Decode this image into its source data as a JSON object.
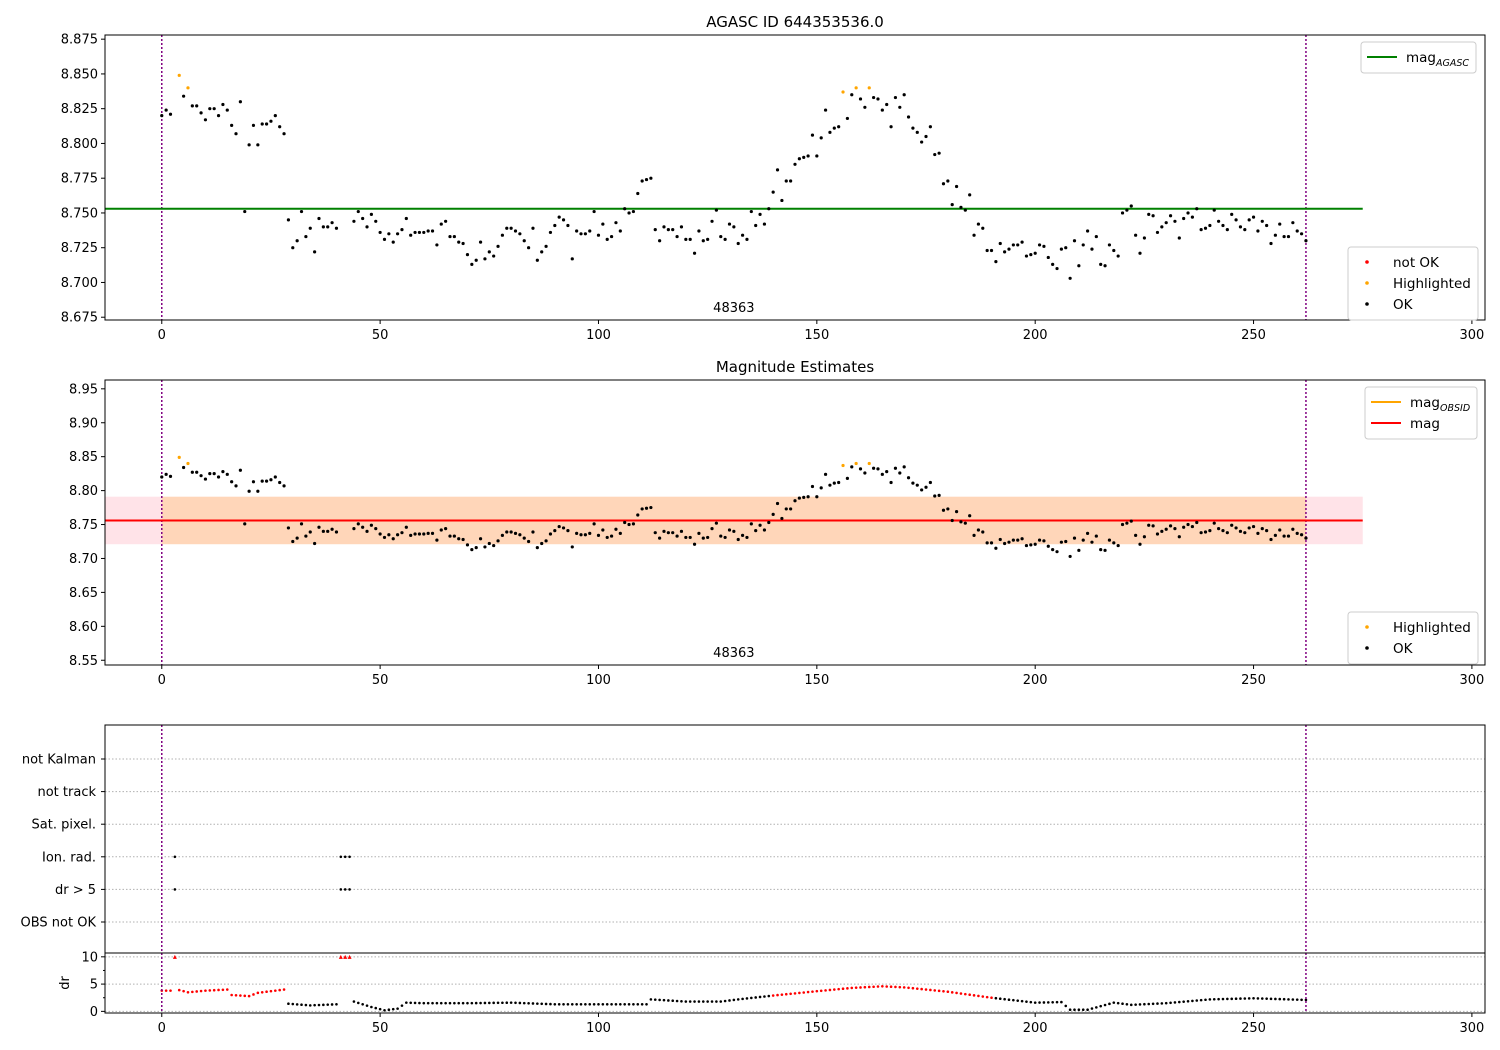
{
  "chart_data": [
    {
      "type": "scatter",
      "title": "AGASC ID 644353536.0",
      "xlim": [
        -13,
        303
      ],
      "ylim": [
        8.673,
        8.878
      ],
      "xticks": [
        0,
        50,
        100,
        150,
        200,
        250,
        300
      ],
      "yticks": [
        8.675,
        8.7,
        8.725,
        8.75,
        8.775,
        8.8,
        8.825,
        8.85,
        8.875
      ],
      "ytick_format": 3,
      "obsid_label": "48363",
      "obsid_label_x": 131,
      "vlines": [
        0,
        262
      ],
      "reference_line": {
        "name": "mag",
        "subscript": "AGASC",
        "y": 8.753,
        "x_end": 275,
        "color": "#008000"
      },
      "legend_top": [
        {
          "kind": "line",
          "label": "mag",
          "subscript": "AGASC",
          "color": "#008000"
        }
      ],
      "legend_bottom": [
        {
          "kind": "dot",
          "label": "not OK",
          "color": "#ff0000"
        },
        {
          "kind": "dot",
          "label": "Highlighted",
          "color": "#ffa500"
        },
        {
          "kind": "dot",
          "label": "OK",
          "color": "#000000"
        }
      ],
      "series": [
        {
          "name": "Highlighted",
          "color": "#ffa500",
          "x": [
            4,
            6,
            156,
            159,
            162
          ],
          "y": [
            8.849,
            8.84,
            8.837,
            8.84,
            8.84
          ]
        },
        {
          "name": "OK",
          "color": "#000000",
          "x": [
            0,
            1,
            2,
            5,
            7,
            8,
            9,
            10,
            11,
            12,
            13,
            14,
            15,
            16,
            17,
            18,
            19,
            20,
            21,
            22,
            23,
            24,
            25,
            26,
            27,
            28,
            29,
            30,
            31,
            32,
            33,
            34,
            35,
            36,
            37,
            38,
            39,
            40,
            44,
            45,
            46,
            47,
            48,
            49,
            50,
            51,
            52,
            53,
            54,
            55,
            56,
            57,
            58,
            59,
            60,
            61,
            62,
            63,
            64,
            65,
            66,
            67,
            68,
            69,
            70,
            71,
            72,
            73,
            74,
            75,
            76,
            77,
            78,
            79,
            80,
            81,
            82,
            83,
            84,
            85,
            86,
            87,
            88,
            89,
            90,
            91,
            92,
            93,
            94,
            95,
            96,
            97,
            98,
            99,
            100,
            101,
            102,
            103,
            104,
            105,
            106,
            107,
            108,
            109,
            110,
            111,
            112,
            113,
            114,
            115,
            116,
            117,
            118,
            119,
            120,
            121,
            122,
            123,
            124,
            125,
            126,
            127,
            128,
            129,
            130,
            131,
            132,
            133,
            134,
            135,
            136,
            137,
            138,
            139,
            140,
            141,
            142,
            143,
            144,
            145,
            146,
            147,
            148,
            149,
            150,
            151,
            152,
            153,
            154,
            155,
            157,
            158,
            160,
            161,
            163,
            164,
            165,
            166,
            167,
            168,
            169,
            170,
            171,
            172,
            173,
            174,
            175,
            176,
            177,
            178,
            179,
            180,
            181,
            182,
            183,
            184,
            185,
            186,
            187,
            188,
            189,
            190,
            191,
            192,
            193,
            194,
            195,
            196,
            197,
            198,
            199,
            200,
            201,
            202,
            203,
            204,
            205,
            206,
            207,
            208,
            209,
            210,
            211,
            212,
            213,
            214,
            215,
            216,
            217,
            218,
            219,
            220,
            221,
            222,
            223,
            224,
            225,
            226,
            227,
            228,
            229,
            230,
            231,
            232,
            233,
            234,
            235,
            236,
            237,
            238,
            239,
            240,
            241,
            242,
            243,
            244,
            245,
            246,
            247,
            248,
            249,
            250,
            251,
            252,
            253,
            254,
            255,
            256,
            257,
            258,
            259,
            260,
            261,
            262
          ],
          "y": [
            8.82,
            8.824,
            8.821,
            8.834,
            8.827,
            8.827,
            8.822,
            8.817,
            8.825,
            8.825,
            8.82,
            8.828,
            8.824,
            8.813,
            8.807,
            8.83,
            8.751,
            8.799,
            8.813,
            8.799,
            8.814,
            8.814,
            8.816,
            8.82,
            8.812,
            8.807,
            8.745,
            8.725,
            8.73,
            8.751,
            8.733,
            8.739,
            8.722,
            8.746,
            8.74,
            8.74,
            8.743,
            8.739,
            8.744,
            8.751,
            8.746,
            8.74,
            8.749,
            8.744,
            8.736,
            8.731,
            8.735,
            8.729,
            8.735,
            8.738,
            8.746,
            8.734,
            8.736,
            8.736,
            8.736,
            8.737,
            8.737,
            8.727,
            8.742,
            8.744,
            8.733,
            8.733,
            8.729,
            8.728,
            8.72,
            8.713,
            8.716,
            8.729,
            8.717,
            8.722,
            8.719,
            8.726,
            8.734,
            8.739,
            8.739,
            8.737,
            8.735,
            8.73,
            8.725,
            8.739,
            8.716,
            8.722,
            8.726,
            8.736,
            8.741,
            8.747,
            8.745,
            8.741,
            8.717,
            8.737,
            8.735,
            8.735,
            8.737,
            8.751,
            8.734,
            8.742,
            8.731,
            8.733,
            8.743,
            8.737,
            8.753,
            8.75,
            8.751,
            8.764,
            8.773,
            8.774,
            8.775,
            8.738,
            8.73,
            8.74,
            8.738,
            8.738,
            8.733,
            8.74,
            8.731,
            8.731,
            8.721,
            8.737,
            8.73,
            8.731,
            8.744,
            8.752,
            8.733,
            8.731,
            8.742,
            8.74,
            8.728,
            8.734,
            8.731,
            8.751,
            8.741,
            8.749,
            8.742,
            8.753,
            8.765,
            8.781,
            8.759,
            8.773,
            8.773,
            8.785,
            8.789,
            8.79,
            8.791,
            8.806,
            8.791,
            8.804,
            8.824,
            8.808,
            8.811,
            8.812,
            8.818,
            8.835,
            8.832,
            8.826,
            8.833,
            8.832,
            8.824,
            8.828,
            8.812,
            8.833,
            8.826,
            8.835,
            8.819,
            8.811,
            8.808,
            8.801,
            8.805,
            8.812,
            8.792,
            8.793,
            8.771,
            8.773,
            8.756,
            8.769,
            8.754,
            8.752,
            8.763,
            8.734,
            8.742,
            8.739,
            8.723,
            8.723,
            8.715,
            8.728,
            8.722,
            8.724,
            8.727,
            8.727,
            8.729,
            8.719,
            8.72,
            8.721,
            8.727,
            8.726,
            8.718,
            8.713,
            8.71,
            8.724,
            8.725,
            8.703,
            8.73,
            8.712,
            8.727,
            8.737,
            8.724,
            8.733,
            8.713,
            8.712,
            8.727,
            8.723,
            8.719,
            8.75,
            8.752,
            8.755,
            8.734,
            8.721,
            8.732,
            8.749,
            8.748,
            8.736,
            8.74,
            8.743,
            8.748,
            8.744,
            8.732,
            8.746,
            8.75,
            8.747,
            8.753,
            8.738,
            8.739,
            8.741,
            8.752,
            8.744,
            8.741,
            8.738,
            8.749,
            8.745,
            8.74,
            8.738,
            8.745,
            8.747,
            8.737,
            8.744,
            8.741,
            8.728,
            8.734,
            8.742,
            8.733,
            8.733,
            8.743,
            8.737,
            8.735,
            8.73
          ]
        }
      ]
    },
    {
      "type": "scatter",
      "title": "Magnitude Estimates",
      "xlim": [
        -13,
        303
      ],
      "ylim": [
        8.543,
        8.963
      ],
      "xticks": [
        0,
        50,
        100,
        150,
        200,
        250,
        300
      ],
      "yticks": [
        8.55,
        8.6,
        8.65,
        8.7,
        8.75,
        8.8,
        8.85,
        8.9,
        8.95
      ],
      "ytick_format": 2,
      "obsid_label": "48363",
      "obsid_label_x": 131,
      "vlines": [
        0,
        262
      ],
      "bands": [
        {
          "x0": -13,
          "x1": 275,
          "y0": 8.721,
          "y1": 8.791,
          "color": "#ffc0cb",
          "opacity": 0.45
        },
        {
          "x0": 0,
          "x1": 262,
          "y0": 8.721,
          "y1": 8.791,
          "color": "#ffa500",
          "opacity": 0.2
        }
      ],
      "reference_lines": [
        {
          "name": "mag",
          "subscript": "OBSID",
          "y": 8.756,
          "x0": 0,
          "x1": 262,
          "color": "#ffa500"
        },
        {
          "name": "mag",
          "y": 8.756,
          "x0": -13,
          "x1": 275,
          "color": "#ff0000"
        }
      ],
      "legend_top": [
        {
          "kind": "line",
          "label": "mag",
          "subscript": "OBSID",
          "color": "#ffa500"
        },
        {
          "kind": "line",
          "label": "mag",
          "color": "#ff0000"
        }
      ],
      "legend_bottom": [
        {
          "kind": "dot",
          "label": "Highlighted",
          "color": "#ffa500"
        },
        {
          "kind": "dot",
          "label": "OK",
          "color": "#000000"
        }
      ],
      "series_ref": "same points as panel 1"
    },
    {
      "type": "scatter",
      "title": "",
      "xlim": [
        -13,
        303
      ],
      "xticks": [
        0,
        50,
        100,
        150,
        200,
        250,
        300
      ],
      "vlines": [
        0,
        262
      ],
      "flag_rows": [
        "not Kalman",
        "not track",
        "Sat. pixel.",
        "Ion. rad.",
        "dr > 5",
        "OBS not OK"
      ],
      "flags": [
        {
          "row": "Ion. rad.",
          "x": [
            3,
            41,
            42,
            43
          ]
        },
        {
          "row": "dr > 5",
          "x": [
            3,
            41,
            42,
            43
          ]
        }
      ]
    },
    {
      "type": "scatter",
      "ylabel": "dr",
      "xlim": [
        -13,
        303
      ],
      "ylim": [
        -0.3,
        10.7
      ],
      "xticks": [
        0,
        50,
        100,
        150,
        200,
        250,
        300
      ],
      "yticks": [
        0,
        5,
        10
      ],
      "vlines": [
        0,
        262
      ],
      "dr_keypoints": [
        [
          0,
          3.8
        ],
        [
          2,
          3.8
        ],
        [
          4,
          3.9
        ],
        [
          6,
          3.5
        ],
        [
          10,
          3.8
        ],
        [
          15,
          4.0
        ],
        [
          16,
          3.0
        ],
        [
          20,
          2.8
        ],
        [
          22,
          3.4
        ],
        [
          28,
          4.0
        ],
        [
          29,
          1.4
        ],
        [
          34,
          1.1
        ],
        [
          40,
          1.3
        ],
        [
          44,
          1.8
        ],
        [
          48,
          0.8
        ],
        [
          51,
          0.2
        ],
        [
          54,
          0.5
        ],
        [
          56,
          1.6
        ],
        [
          60,
          1.5
        ],
        [
          70,
          1.5
        ],
        [
          80,
          1.6
        ],
        [
          90,
          1.3
        ],
        [
          100,
          1.3
        ],
        [
          111,
          1.3
        ],
        [
          112,
          2.2
        ],
        [
          120,
          1.8
        ],
        [
          128,
          1.8
        ],
        [
          132,
          2.2
        ],
        [
          140,
          2.9
        ],
        [
          150,
          3.7
        ],
        [
          158,
          4.3
        ],
        [
          165,
          4.6
        ],
        [
          170,
          4.4
        ],
        [
          180,
          3.6
        ],
        [
          190,
          2.5
        ],
        [
          200,
          1.6
        ],
        [
          206,
          1.7
        ],
        [
          208,
          0.3
        ],
        [
          212,
          0.3
        ],
        [
          218,
          1.6
        ],
        [
          222,
          1.2
        ],
        [
          230,
          1.5
        ],
        [
          240,
          2.2
        ],
        [
          250,
          2.4
        ],
        [
          262,
          2.1
        ]
      ],
      "dr_red_range": [
        140,
        190
      ],
      "dr_red_ranges_extra": [
        [
          0,
          28
        ]
      ],
      "dr_flag_points": [
        [
          3,
          10
        ],
        [
          41,
          10
        ],
        [
          42,
          10
        ],
        [
          43,
          10
        ]
      ]
    }
  ]
}
